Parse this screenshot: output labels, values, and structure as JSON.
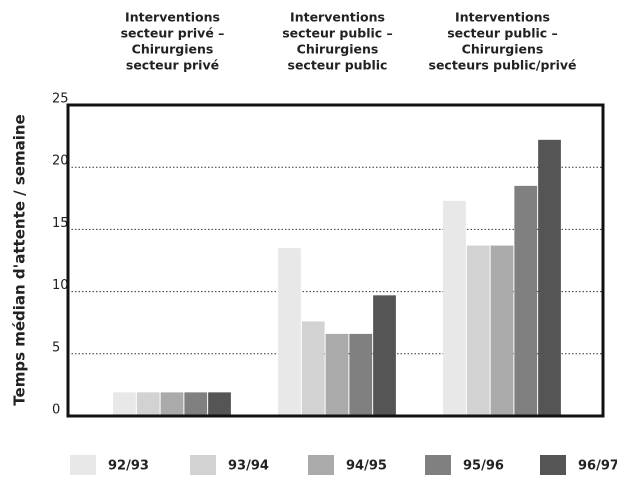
{
  "chart_data": {
    "type": "bar",
    "y_label": "Temps médian d'attente / semaine",
    "categories": [
      [
        "Interventions",
        "secteur privé –",
        "Chirurgiens",
        "secteur privé"
      ],
      [
        "Interventions",
        "secteur public –",
        "Chirurgiens",
        "secteur public"
      ],
      [
        "Interventions",
        "secteur public –",
        "Chirurgiens",
        "secteurs public/privé"
      ]
    ],
    "series": [
      {
        "name": "92/93",
        "color": "#e8e8e8",
        "values": [
          1.9,
          13.5,
          17.3
        ]
      },
      {
        "name": "93/94",
        "color": "#d2d2d2",
        "values": [
          1.9,
          7.6,
          13.7
        ]
      },
      {
        "name": "94/95",
        "color": "#aaaaaa",
        "values": [
          1.9,
          6.6,
          13.7
        ]
      },
      {
        "name": "95/96",
        "color": "#808080",
        "values": [
          1.9,
          6.6,
          18.5
        ]
      },
      {
        "name": "96/97",
        "color": "#555555",
        "values": [
          1.9,
          9.7,
          22.2
        ]
      }
    ],
    "ylim": [
      0,
      25
    ],
    "yticks": [
      0,
      5,
      10,
      15,
      20,
      25
    ],
    "grid": true
  }
}
